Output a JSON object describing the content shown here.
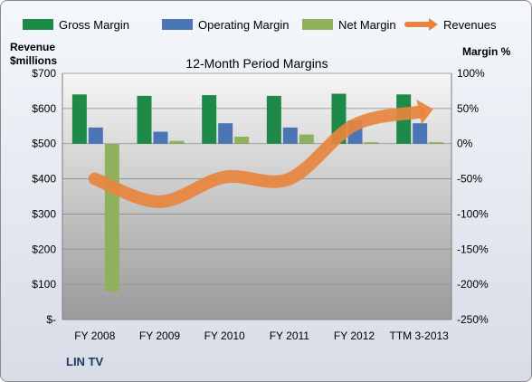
{
  "chart_data": {
    "type": "bar",
    "title": "12-Month Period Margins",
    "company": "LIN TV",
    "categories": [
      "FY 2008",
      "FY 2009",
      "FY 2010",
      "FY 2011",
      "FY 2012",
      "TTM 3-2013"
    ],
    "y_left": {
      "label_line1": "Revenue",
      "label_line2": "$millions",
      "range": [
        0,
        700
      ],
      "ticks": [
        0,
        100,
        200,
        300,
        400,
        500,
        600,
        700
      ],
      "tick_labels": [
        "$-",
        "$100",
        "$200",
        "$300",
        "$400",
        "$500",
        "$600",
        "$700"
      ]
    },
    "y_right": {
      "label": "Margin %",
      "range": [
        -250,
        100
      ],
      "ticks": [
        -250,
        -200,
        -150,
        -100,
        -50,
        0,
        50,
        100
      ],
      "tick_labels": [
        "-250%",
        "-200%",
        "-150%",
        "-100%",
        "-50%",
        "0%",
        "50%",
        "100%"
      ]
    },
    "series": [
      {
        "name": "Gross Margin",
        "axis": "right",
        "color": "#1e8a47",
        "values": [
          70,
          68,
          69,
          68,
          71,
          70
        ]
      },
      {
        "name": "Operating Margin",
        "axis": "right",
        "color": "#4a76b6",
        "values": [
          23,
          17,
          29,
          23,
          33,
          29
        ]
      },
      {
        "name": "Net Margin",
        "axis": "right",
        "color": "#8fb15c",
        "values": [
          -210,
          4,
          10,
          13,
          2,
          2
        ]
      },
      {
        "name": "Revenues",
        "axis": "left",
        "type": "line",
        "color": "#e8843f",
        "values": [
          400,
          335,
          405,
          400,
          553,
          590
        ]
      }
    ],
    "legend_position": "top",
    "grid": true
  }
}
